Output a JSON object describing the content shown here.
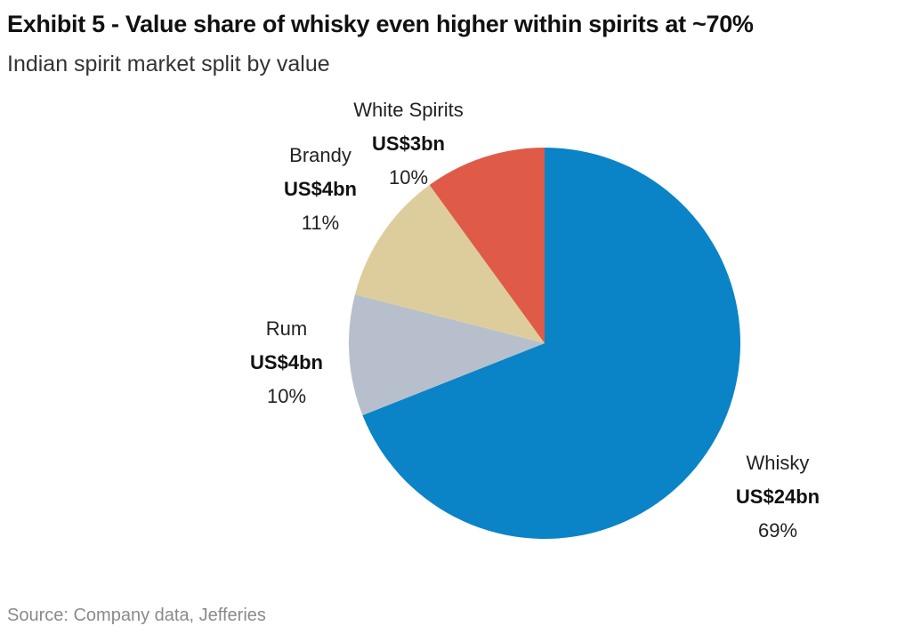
{
  "header": {
    "title": "Exhibit 5 - Value share of whisky even higher within spirits at ~70%",
    "subtitle": "Indian spirit market split by value"
  },
  "footer": {
    "source": "Source: Company data, Jefferies"
  },
  "chart_data": {
    "type": "pie",
    "title": "Exhibit 5 - Value share of whisky even higher within spirits at ~70%",
    "subtitle": "Indian spirit market split by value",
    "slices": [
      {
        "label": "Whisky",
        "value_label": "US$24bn",
        "value": 24,
        "percent_label": "69%",
        "percent": 69,
        "color": "#0a84c6"
      },
      {
        "label": "Rum",
        "value_label": "US$4bn",
        "value": 4,
        "percent_label": "10%",
        "percent": 10,
        "color": "#b7bfcc"
      },
      {
        "label": "Brandy",
        "value_label": "US$4bn",
        "value": 4,
        "percent_label": "11%",
        "percent": 11,
        "color": "#decd9c"
      },
      {
        "label": "White Spirits",
        "value_label": "US$3bn",
        "value": 3,
        "percent_label": "10%",
        "percent": 10,
        "color": "#e05a48"
      }
    ],
    "start_angle": "12 o'clock",
    "direction": "clockwise",
    "source": "Source: Company data, Jefferies"
  }
}
